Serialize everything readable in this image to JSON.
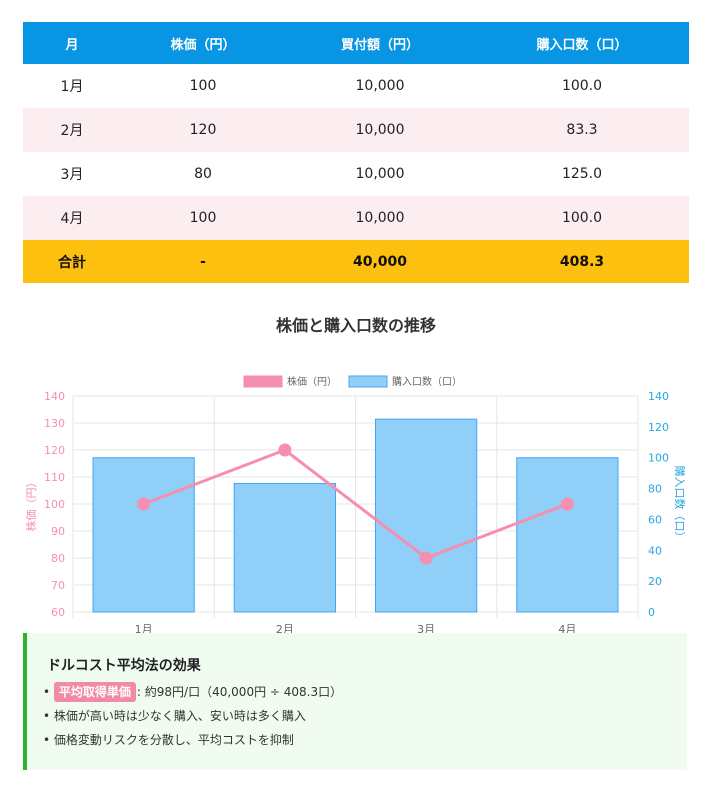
{
  "table": {
    "headers": [
      "月",
      "株価（円）",
      "買付額（円）",
      "購入口数（口）"
    ],
    "rows": [
      [
        "1月",
        "100",
        "10,000",
        "100.0"
      ],
      [
        "2月",
        "120",
        "10,000",
        "83.3"
      ],
      [
        "3月",
        "80",
        "10,000",
        "125.0"
      ],
      [
        "4月",
        "100",
        "10,000",
        "100.0"
      ]
    ],
    "total": [
      "合計",
      "-",
      "40,000",
      "408.3"
    ]
  },
  "chart_data": {
    "type": "bar",
    "title": "株価と購入口数の推移",
    "categories": [
      "1月",
      "2月",
      "3月",
      "4月"
    ],
    "series": [
      {
        "name": "株価（円）",
        "type": "line",
        "axis": "left",
        "values": [
          100,
          120,
          80,
          100
        ],
        "color": "#f48fb1"
      },
      {
        "name": "購入口数（口）",
        "type": "bar",
        "axis": "right",
        "values": [
          100,
          83.3,
          125,
          100
        ],
        "color": "#90cff8"
      }
    ],
    "y_left": {
      "label": "株価（円）",
      "range": [
        60,
        140
      ],
      "ticks": [
        "60",
        "70",
        "80",
        "90",
        "100",
        "110",
        "120",
        "130",
        "140"
      ]
    },
    "y_right": {
      "label": "購入口数（口）",
      "range": [
        0,
        140
      ],
      "ticks": [
        "0",
        "20",
        "40",
        "60",
        "80",
        "100",
        "120",
        "140"
      ]
    },
    "legend": "top",
    "grid": true
  },
  "info": {
    "title": "ドルコスト平均法の効果",
    "bullet": "•",
    "items": [
      {
        "highlight": "平均取得単価",
        "text": ": 約98円/口（40,000円 ÷ 408.3口）"
      },
      {
        "text": "株価が高い時は少なく購入、安い時は多く購入"
      },
      {
        "text": "価格変動リスクを分散し、平均コストを抑制"
      }
    ]
  },
  "colors": {
    "header_bg": "#0895e3",
    "row_alt_bg": "#fcedf0",
    "total_bg": "#fec00e",
    "accent_green": "#2bb52d",
    "info_bg": "#f1fcf1"
  }
}
